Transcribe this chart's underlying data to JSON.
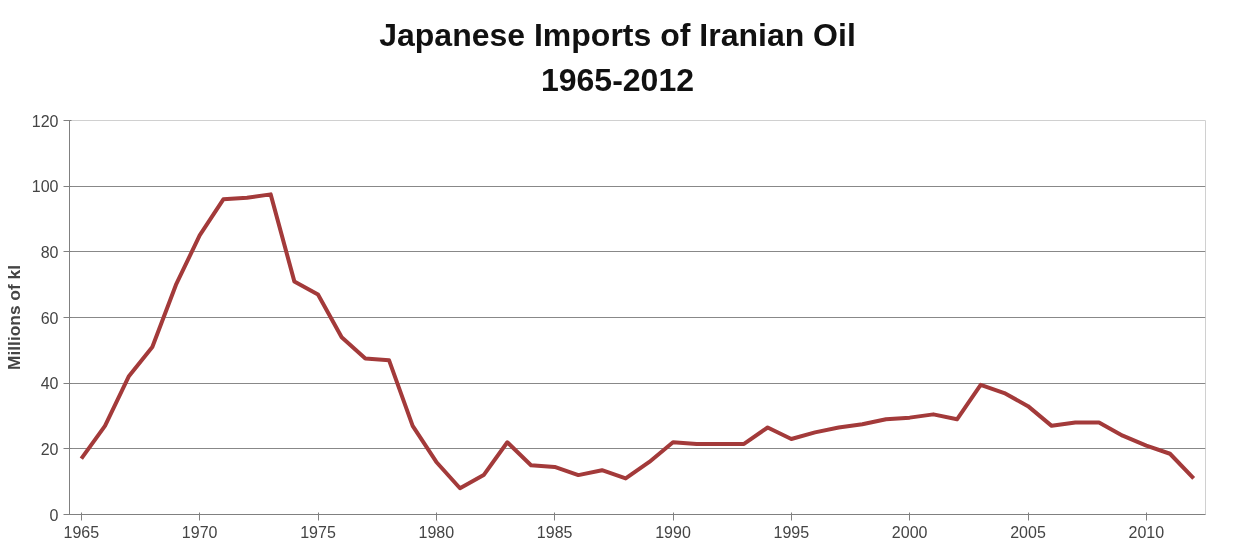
{
  "chart_data": {
    "type": "line",
    "title": "Japanese Imports of Iranian Oil\n1965-2012",
    "ylabel": "Millions of kl",
    "x": [
      1965,
      1966,
      1967,
      1968,
      1969,
      1970,
      1971,
      1972,
      1973,
      1974,
      1975,
      1976,
      1977,
      1978,
      1979,
      1980,
      1981,
      1982,
      1983,
      1984,
      1985,
      1986,
      1987,
      1988,
      1989,
      1990,
      1991,
      1992,
      1993,
      1994,
      1995,
      1996,
      1997,
      1998,
      1999,
      2000,
      2001,
      2002,
      2003,
      2004,
      2005,
      2006,
      2007,
      2008,
      2009,
      2010,
      2011,
      2012
    ],
    "series": [
      {
        "color": "#a33a3a",
        "values": [
          17,
          27,
          42,
          51,
          70,
          85,
          96,
          96.5,
          97.5,
          71,
          67,
          54,
          47.5,
          47,
          27,
          16,
          8,
          12,
          22,
          15,
          14.5,
          12,
          13.5,
          11,
          16,
          22,
          21.5,
          21.5,
          21.5,
          26.5,
          23,
          25,
          26.5,
          27.5,
          29,
          29.5,
          30.5,
          29,
          39.5,
          37,
          33,
          27,
          28,
          28,
          24,
          21,
          18.5,
          11
        ]
      }
    ],
    "xlim": [
      1964.5,
      2012.5
    ],
    "xticks": [
      1965,
      1970,
      1975,
      1980,
      1985,
      1990,
      1995,
      2000,
      2005,
      2010
    ],
    "ylim": [
      0,
      120
    ],
    "yticks": [
      0,
      20,
      40,
      60,
      80,
      100,
      120
    ],
    "grid": "y",
    "marker": "none",
    "line_style": "solid"
  }
}
